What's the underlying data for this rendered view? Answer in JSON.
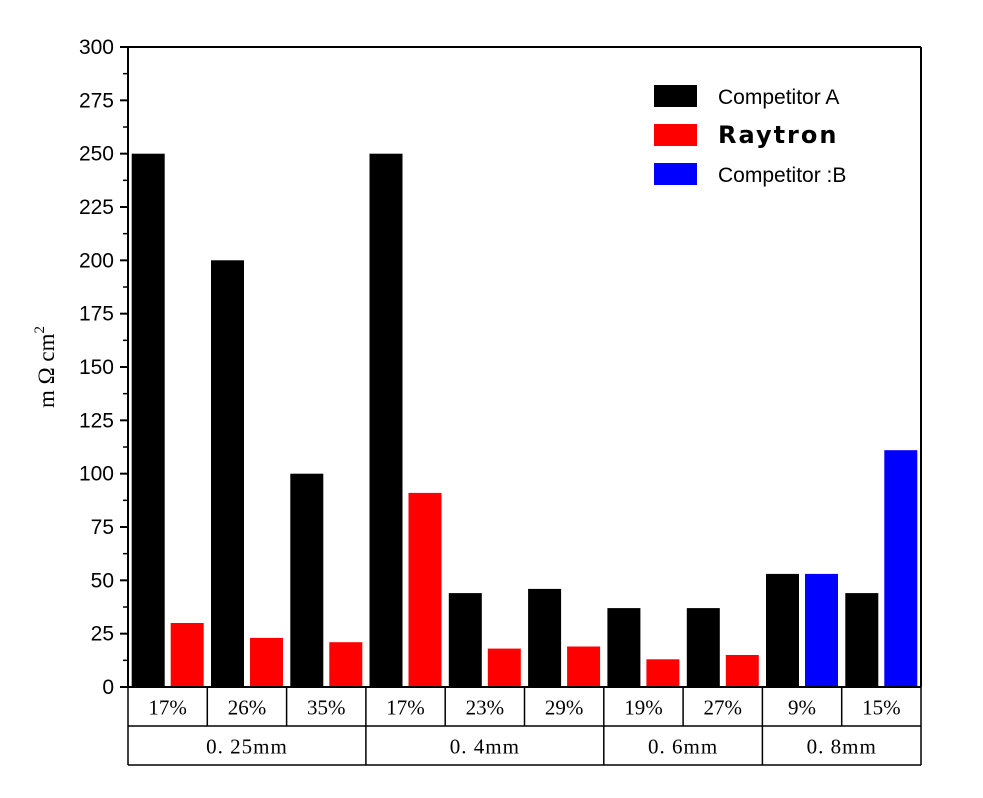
{
  "chart_data": {
    "type": "bar",
    "ylabel": "m Ω cm²",
    "ylabel_parts": {
      "base": "m Ω cm",
      "sup": "2"
    },
    "ylim": [
      0,
      300
    ],
    "yticks": [
      0,
      25,
      50,
      75,
      100,
      125,
      150,
      175,
      200,
      225,
      250,
      275,
      300
    ],
    "grid": false,
    "legend_position": "top-right",
    "series": [
      {
        "name": "Competitor A",
        "color": "#000000",
        "values": [
          250,
          200,
          100,
          250,
          44,
          46,
          37,
          37,
          53,
          44
        ]
      },
      {
        "name": "Raytron",
        "color": "#ff0000",
        "values": [
          30,
          23,
          21,
          91,
          18,
          19,
          13,
          15,
          null,
          null
        ]
      },
      {
        "name": "Competitor B",
        "color": "#0000ff",
        "values": [
          null,
          null,
          null,
          null,
          null,
          null,
          null,
          null,
          53,
          111
        ]
      }
    ],
    "categories": [
      "17%",
      "26%",
      "35%",
      "17%",
      "23%",
      "29%",
      "19%",
      "27%",
      "9%",
      "15%"
    ],
    "groups": [
      {
        "label": "0. 25mm",
        "count": 3
      },
      {
        "label": "0. 4mm",
        "count": 3
      },
      {
        "label": "0. 6mm",
        "count": 2
      },
      {
        "label": "0. 8mm",
        "count": 2
      }
    ],
    "legend_display": [
      "Competitor A",
      "Raytron",
      "Competitor :B"
    ]
  }
}
